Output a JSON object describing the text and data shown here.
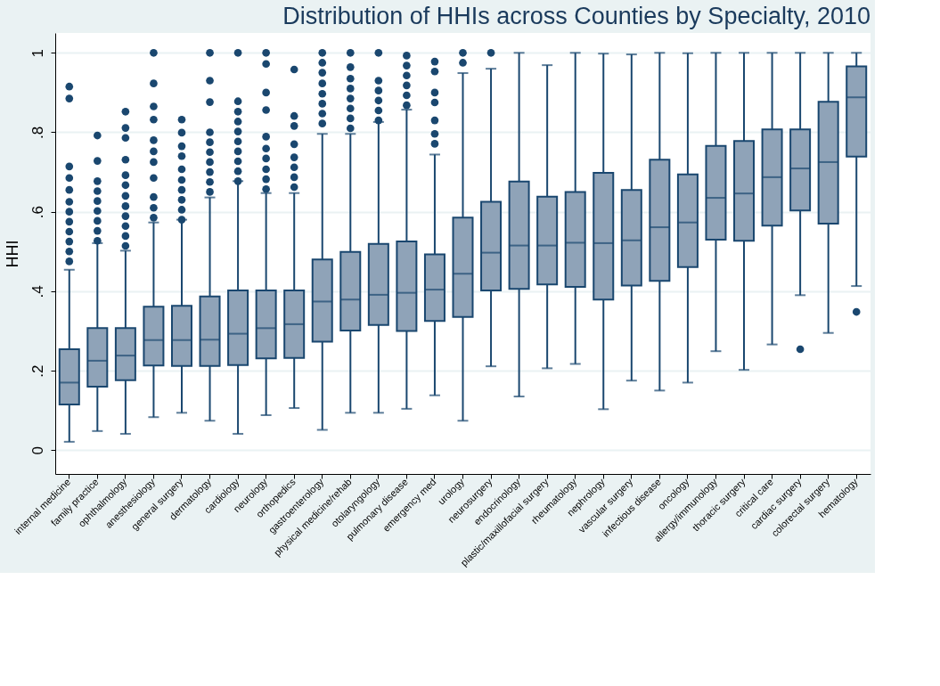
{
  "chart_data": {
    "type": "box",
    "title": "Distribution of HHIs across Counties by Specialty, 2010",
    "ylabel": "HHI",
    "categories": [
      "internal medicine",
      "family practice",
      "ophthalmology",
      "anesthesiology",
      "general surgery",
      "dermatology",
      "cardiology",
      "neurology",
      "orthopedics",
      "gastroenterology",
      "physical medicine/rehab",
      "otolaryngology",
      "pulmonary disease",
      "emergency med",
      "urology",
      "neurosurgery",
      "endocrinology",
      "plastic/maxillofacial surgery",
      "rheumatology",
      "nephrology",
      "vascular surgery",
      "infectious disease",
      "oncology",
      "allergy/immunology",
      "thoracic surgery",
      "critical care",
      "cardiac surgery",
      "colorectal surgery",
      "hematology"
    ],
    "series": [
      {
        "color": "#8fa3b8",
        "boxes": [
          {
            "low": 0.021,
            "q1": 0.115,
            "median": 0.17,
            "q3": 0.254,
            "high": 0.454,
            "outliers": [
              0.915,
              0.885,
              0.714,
              0.685,
              0.655,
              0.625,
              0.6,
              0.575,
              0.55,
              0.525,
              0.5,
              0.475
            ]
          },
          {
            "low": 0.048,
            "q1": 0.16,
            "median": 0.225,
            "q3": 0.307,
            "high": 0.521,
            "outliers": [
              0.792,
              0.728,
              0.677,
              0.652,
              0.627,
              0.602,
              0.577,
              0.552,
              0.527
            ]
          },
          {
            "low": 0.041,
            "q1": 0.176,
            "median": 0.238,
            "q3": 0.307,
            "high": 0.502,
            "outliers": [
              0.852,
              0.811,
              0.786,
              0.731,
              0.692,
              0.667,
              0.64,
              0.614,
              0.589,
              0.564,
              0.539,
              0.514
            ]
          },
          {
            "low": 0.083,
            "q1": 0.213,
            "median": 0.277,
            "q3": 0.361,
            "high": 0.573,
            "outliers": [
              1.0,
              0.923,
              0.865,
              0.832,
              0.78,
              0.752,
              0.725,
              0.685,
              0.637,
              0.61,
              0.585
            ]
          },
          {
            "low": 0.094,
            "q1": 0.212,
            "median": 0.277,
            "q3": 0.363,
            "high": 0.58,
            "outliers": [
              0.832,
              0.799,
              0.765,
              0.74,
              0.707,
              0.68,
              0.655,
              0.63,
              0.605,
              0.58
            ]
          },
          {
            "low": 0.074,
            "q1": 0.212,
            "median": 0.278,
            "q3": 0.387,
            "high": 0.636,
            "outliers": [
              1.0,
              0.93,
              0.876,
              0.8,
              0.775,
              0.75,
              0.725,
              0.7,
              0.675,
              0.65
            ]
          },
          {
            "low": 0.041,
            "q1": 0.214,
            "median": 0.293,
            "q3": 0.402,
            "high": 0.677,
            "outliers": [
              1.0,
              0.878,
              0.852,
              0.827,
              0.802,
              0.777,
              0.752,
              0.727,
              0.702,
              0.677
            ]
          },
          {
            "low": 0.088,
            "q1": 0.231,
            "median": 0.307,
            "q3": 0.402,
            "high": 0.647,
            "outliers": [
              1.0,
              0.972,
              0.9,
              0.856,
              0.789,
              0.759,
              0.734,
              0.707,
              0.682,
              0.657
            ]
          },
          {
            "low": 0.106,
            "q1": 0.232,
            "median": 0.317,
            "q3": 0.402,
            "high": 0.647,
            "outliers": [
              0.958,
              0.841,
              0.816,
              0.77,
              0.737,
              0.712,
              0.687,
              0.662
            ]
          },
          {
            "low": 0.051,
            "q1": 0.273,
            "median": 0.374,
            "q3": 0.48,
            "high": 0.796,
            "outliers": [
              1.0,
              0.975,
              0.95,
              0.923,
              0.897,
              0.872,
              0.847,
              0.822
            ]
          },
          {
            "low": 0.094,
            "q1": 0.301,
            "median": 0.379,
            "q3": 0.499,
            "high": 0.796,
            "outliers": [
              1.0,
              0.964,
              0.935,
              0.91,
              0.885,
              0.86,
              0.835,
              0.81
            ]
          },
          {
            "low": 0.094,
            "q1": 0.315,
            "median": 0.391,
            "q3": 0.519,
            "high": 0.826,
            "outliers": [
              1.0,
              0.93,
              0.905,
              0.88,
              0.855,
              0.83
            ]
          },
          {
            "low": 0.104,
            "q1": 0.3,
            "median": 0.396,
            "q3": 0.525,
            "high": 0.857,
            "outliers": [
              0.993,
              0.968,
              0.943,
              0.918,
              0.893,
              0.868
            ]
          },
          {
            "low": 0.138,
            "q1": 0.325,
            "median": 0.404,
            "q3": 0.493,
            "high": 0.744,
            "outliers": [
              0.978,
              0.953,
              0.9,
              0.875,
              0.83,
              0.796,
              0.771
            ]
          },
          {
            "low": 0.074,
            "q1": 0.335,
            "median": 0.444,
            "q3": 0.585,
            "high": 0.949,
            "outliers": [
              1.0,
              0.975
            ]
          },
          {
            "low": 0.211,
            "q1": 0.402,
            "median": 0.497,
            "q3": 0.625,
            "high": 0.96,
            "outliers": [
              1.0
            ]
          },
          {
            "low": 0.135,
            "q1": 0.406,
            "median": 0.515,
            "q3": 0.676,
            "high": 1.0
          },
          {
            "low": 0.206,
            "q1": 0.417,
            "median": 0.515,
            "q3": 0.638,
            "high": 0.969
          },
          {
            "low": 0.217,
            "q1": 0.411,
            "median": 0.522,
            "q3": 0.65,
            "high": 1.0
          },
          {
            "low": 0.103,
            "q1": 0.379,
            "median": 0.521,
            "q3": 0.698,
            "high": 0.998
          },
          {
            "low": 0.175,
            "q1": 0.414,
            "median": 0.528,
            "q3": 0.655,
            "high": 0.996
          },
          {
            "low": 0.15,
            "q1": 0.426,
            "median": 0.561,
            "q3": 0.731,
            "high": 1.0
          },
          {
            "low": 0.17,
            "q1": 0.461,
            "median": 0.573,
            "q3": 0.694,
            "high": 0.999
          },
          {
            "low": 0.249,
            "q1": 0.53,
            "median": 0.635,
            "q3": 0.766,
            "high": 1.0
          },
          {
            "low": 0.202,
            "q1": 0.527,
            "median": 0.646,
            "q3": 0.778,
            "high": 1.0
          },
          {
            "low": 0.266,
            "q1": 0.565,
            "median": 0.687,
            "q3": 0.807,
            "high": 1.0
          },
          {
            "low": 0.39,
            "q1": 0.603,
            "median": 0.709,
            "q3": 0.807,
            "high": 1.0,
            "outliers": [
              0.254
            ]
          },
          {
            "low": 0.295,
            "q1": 0.57,
            "median": 0.725,
            "q3": 0.877,
            "high": 1.0
          },
          {
            "low": 0.413,
            "q1": 0.739,
            "median": 0.888,
            "q3": 0.966,
            "high": 1.0,
            "outliers": [
              0.348
            ]
          }
        ]
      }
    ],
    "ylim": [
      -0.06,
      1.05
    ],
    "yticks": [
      0,
      {
        "value": 0.2,
        "label": ".2"
      },
      {
        "value": 0.4,
        "label": ".4"
      },
      {
        "value": 0.6,
        "label": ".6"
      },
      {
        "value": 0.8,
        "label": ".8"
      },
      1
    ],
    "grid": "y",
    "marker": "circle"
  }
}
